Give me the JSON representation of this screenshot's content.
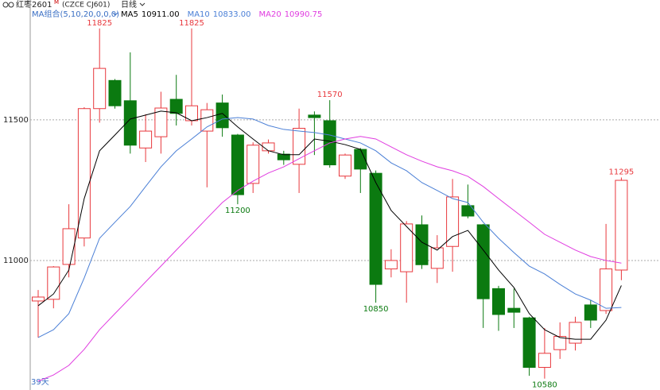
{
  "header": {
    "symbol": "红枣2601",
    "flag": "M",
    "code": "(CZCE CJ601)",
    "period": "日线",
    "indicator": "MA组合(5,10,20,0,0,0)"
  },
  "chart_data": {
    "type": "candlestick",
    "open": [
      10856,
      10862,
      10986,
      11080,
      11540,
      11640,
      11568,
      11400,
      11440,
      11573,
      11497,
      11460,
      11560,
      11446,
      11274,
      11390,
      11378,
      11342,
      11517,
      11497,
      11300,
      11395,
      11310,
      10970,
      10960,
      11127,
      10972,
      11050,
      11195,
      11127,
      10900,
      10830,
      10796,
      10620,
      10683,
      10706,
      10842,
      10822,
      10966
    ],
    "high": [
      10895,
      10980,
      11200,
      11545,
      11825,
      11645,
      11740,
      11520,
      11600,
      11660,
      11825,
      11560,
      11590,
      11450,
      11420,
      11430,
      11390,
      11540,
      11530,
      11570,
      11380,
      11400,
      11320,
      11040,
      11140,
      11160,
      11090,
      11290,
      11270,
      11130,
      10910,
      10900,
      10800,
      10760,
      10780,
      10800,
      10860,
      11130,
      11295
    ],
    "low": [
      10726,
      10830,
      10940,
      11050,
      11490,
      11540,
      11380,
      11350,
      11380,
      11480,
      11480,
      11260,
      11440,
      11200,
      11240,
      11380,
      11340,
      11240,
      11375,
      11330,
      11290,
      11240,
      10850,
      10940,
      10850,
      10970,
      10920,
      10960,
      11150,
      10760,
      10750,
      10760,
      10590,
      10580,
      10650,
      10680,
      10760,
      10810,
      10930
    ],
    "close": [
      10870,
      10977,
      11113,
      11540,
      11683,
      11550,
      11410,
      11460,
      11542,
      11523,
      11550,
      11536,
      11472,
      11234,
      11410,
      11418,
      11358,
      11470,
      11508,
      11340,
      11375,
      11325,
      10915,
      11000,
      11130,
      10985,
      11045,
      11226,
      11158,
      10864,
      10808,
      10816,
      10620,
      10670,
      10730,
      10780,
      10788,
      10970,
      11285
    ],
    "up_color": "#e8383d",
    "down_color": "#0b7a10",
    "series": [
      {
        "name": "MA5",
        "color": "#000000",
        "values": [
          10839,
          10881,
          10966,
          11220,
          11390,
          11446,
          11503,
          11517,
          11531,
          11525,
          11497,
          11508,
          11523,
          11475,
          11432,
          11390,
          11376,
          11376,
          11432,
          11424,
          11412,
          11395,
          11277,
          11178,
          11121,
          11065,
          11037,
          11085,
          11107,
          11037,
          10966,
          10904,
          10811,
          10754,
          10726,
          10720,
          10720,
          10788,
          10911
        ],
        "value_labels": [
          null,
          null,
          null,
          null,
          null,
          null,
          null,
          null,
          null,
          null,
          null,
          null,
          null,
          null,
          null,
          null,
          null,
          null,
          null,
          null,
          null,
          null,
          null,
          null,
          null,
          null,
          null,
          null,
          null,
          null,
          null,
          null,
          null,
          null,
          null,
          null,
          null,
          null,
          "10911.00"
        ]
      },
      {
        "name": "MA10",
        "color": "#4a7fd6",
        "values": [
          10726,
          10754,
          10811,
          10938,
          11079,
          11136,
          11192,
          11263,
          11333,
          11390,
          11432,
          11475,
          11503,
          11508,
          11503,
          11480,
          11466,
          11460,
          11455,
          11446,
          11432,
          11418,
          11390,
          11347,
          11319,
          11277,
          11249,
          11220,
          11206,
          11136,
          11079,
          11028,
          10980,
          10952,
          10915,
          10881,
          10859,
          10830,
          10833
        ],
        "value_labels": [
          null,
          null,
          null,
          null,
          null,
          null,
          null,
          null,
          null,
          null,
          null,
          null,
          null,
          null,
          null,
          null,
          null,
          null,
          null,
          null,
          null,
          null,
          null,
          null,
          null,
          null,
          null,
          null,
          null,
          null,
          null,
          null,
          null,
          null,
          null,
          null,
          null,
          null,
          "10833.00"
        ]
      },
      {
        "name": "MA20",
        "color": "#e03ce0",
        "values": [
          10571,
          10593,
          10627,
          10684,
          10754,
          10811,
          10867,
          10924,
          10980,
          11037,
          11093,
          11150,
          11206,
          11249,
          11282,
          11311,
          11333,
          11362,
          11390,
          11418,
          11432,
          11441,
          11432,
          11404,
          11376,
          11353,
          11333,
          11319,
          11299,
          11263,
          11220,
          11178,
          11136,
          11093,
          11065,
          11037,
          11014,
          11000,
          10990.75
        ],
        "value_labels": [
          null,
          null,
          null,
          null,
          null,
          null,
          null,
          null,
          null,
          null,
          null,
          null,
          null,
          null,
          null,
          null,
          null,
          null,
          null,
          null,
          null,
          null,
          null,
          null,
          null,
          null,
          null,
          null,
          null,
          null,
          null,
          null,
          null,
          null,
          null,
          null,
          null,
          null,
          "10990.75"
        ]
      }
    ],
    "extremes": [
      {
        "x": 4,
        "value": 11825,
        "side": "high"
      },
      {
        "x": 10,
        "value": 11825,
        "side": "high"
      },
      {
        "x": 19,
        "value": 11570,
        "side": "high"
      },
      {
        "x": 13,
        "value": 11200,
        "side": "low"
      },
      {
        "x": 22,
        "value": 10850,
        "side": "low"
      },
      {
        "x": 33,
        "value": 10580,
        "side": "low"
      },
      {
        "x": 38,
        "value": 11295,
        "side": "high"
      }
    ],
    "ylim": [
      10548,
      11864
    ],
    "yticks": [
      11000,
      11500
    ],
    "grid": true,
    "count_label": "39天"
  }
}
